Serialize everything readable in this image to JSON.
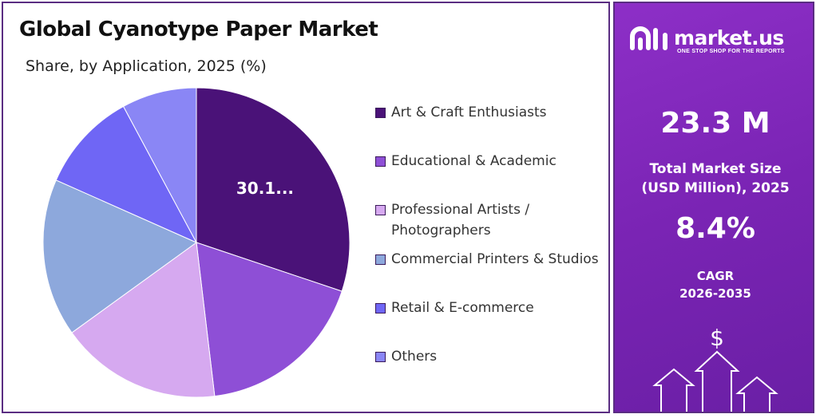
{
  "header": {
    "title": "Global Cyanotype Paper Market",
    "subtitle": "Share, by Application, 2025 (%)"
  },
  "chart_data": {
    "type": "pie",
    "title": "Global Cyanotype Paper Market",
    "subtitle": "Share, by Application, 2025 (%)",
    "categories": [
      "Art & Craft Enthusiasts",
      "Educational & Academic",
      "Professional Artists / Photographers",
      "Commercial Printers & Studios",
      "Retail & E-commerce",
      "Others"
    ],
    "values": [
      30.1,
      18.0,
      17.0,
      16.5,
      10.5,
      7.9
    ],
    "colors": [
      "#4a1278",
      "#8e4fd6",
      "#d6a9f0",
      "#8da8dc",
      "#6f66f5",
      "#8a86f5"
    ],
    "data_labels": [
      "30.1...",
      "",
      "",
      "",
      "",
      ""
    ],
    "legend_position": "right"
  },
  "legend": {
    "items": [
      {
        "label": "Art & Craft Enthusiasts",
        "color": "#4a1278"
      },
      {
        "label": "Educational & Academic",
        "color": "#8e4fd6"
      },
      {
        "label": "Professional Artists / Photographers",
        "color": "#d6a9f0"
      },
      {
        "label": "Commercial Printers & Studios",
        "color": "#8da8dc"
      },
      {
        "label": "Retail & E-commerce",
        "color": "#6f66f5"
      },
      {
        "label": "Others",
        "color": "#8a86f5"
      }
    ]
  },
  "sidebar": {
    "brand": "market.us",
    "tagline": "ONE STOP SHOP FOR THE REPORTS",
    "market_size_value": "23.3 M",
    "market_size_label_1": "Total Market Size",
    "market_size_label_2": "(USD Million), 2025",
    "cagr_value": "8.4%",
    "cagr_label_1": "CAGR",
    "cagr_label_2": "2026-2035",
    "currency_symbol": "$",
    "accent_color": "#7a24b4"
  }
}
